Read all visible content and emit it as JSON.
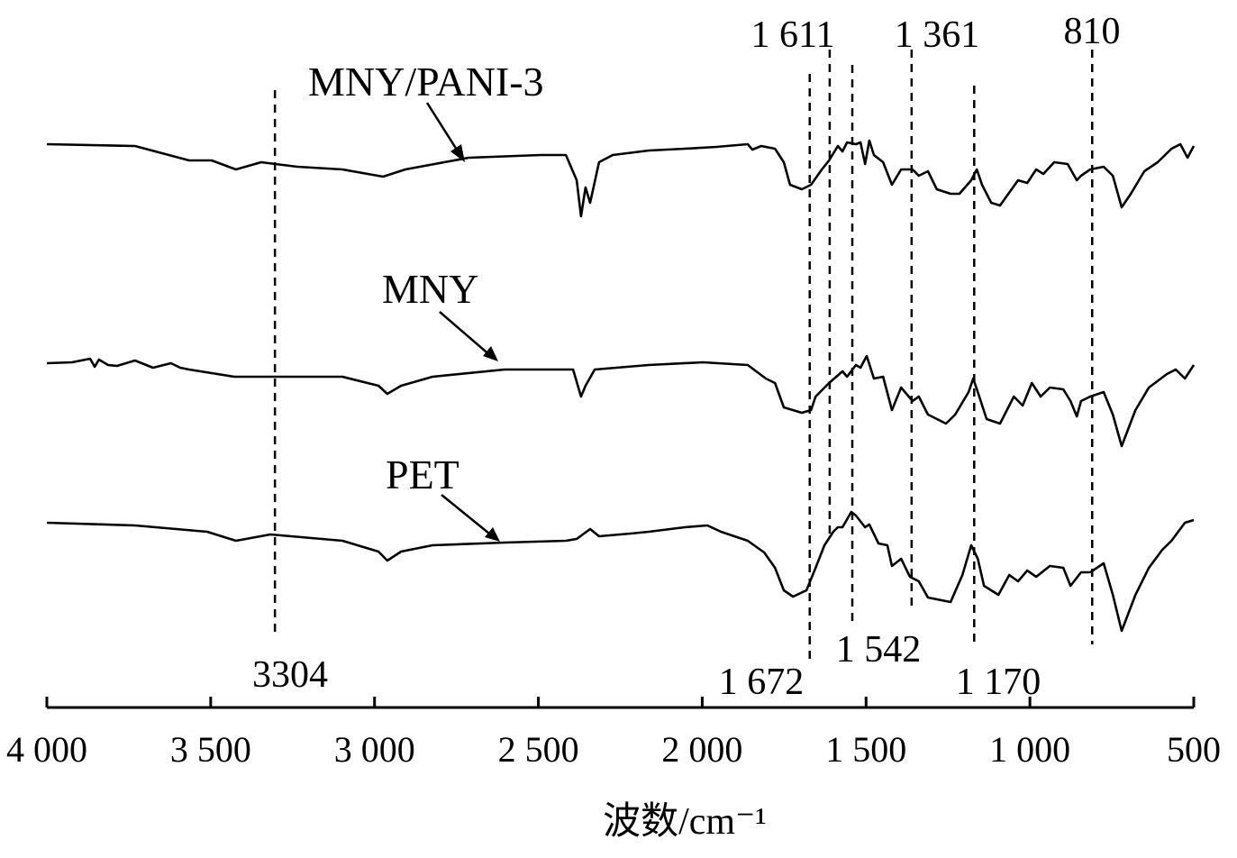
{
  "chart_data": {
    "type": "line",
    "title": "",
    "xlabel": "波数/cm⁻¹",
    "ylabel": "",
    "xlim": [
      4000,
      500
    ],
    "x_reversed": true,
    "y_unit": "transmittance (a.u., stacked)",
    "grid": false,
    "x_ticks": [
      4000,
      3500,
      3000,
      2500,
      2000,
      1500,
      1000,
      500
    ],
    "x_tick_labels": [
      "4 000",
      "3 500",
      "3 000",
      "2 500",
      "2 000",
      "1 500",
      "1 000",
      "500"
    ],
    "annotations": [
      {
        "wavenumber": 3304,
        "label": "3304",
        "side": "bottom"
      },
      {
        "wavenumber": 1672,
        "label": "1 672",
        "side": "bottom"
      },
      {
        "wavenumber": 1611,
        "label": "1 611",
        "side": "top"
      },
      {
        "wavenumber": 1542,
        "label": "1 542",
        "side": "bottom"
      },
      {
        "wavenumber": 1361,
        "label": "1 361",
        "side": "top"
      },
      {
        "wavenumber": 1170,
        "label": "1 170",
        "side": "bottom"
      },
      {
        "wavenumber": 810,
        "label": "810",
        "side": "top"
      }
    ],
    "series": [
      {
        "name": "MNY/PANI-3",
        "color": "#000000",
        "points": [
          [
            4000,
            640
          ],
          [
            3731,
            638
          ],
          [
            3566,
            622
          ],
          [
            3497,
            622
          ],
          [
            3423,
            612
          ],
          [
            3346,
            620
          ],
          [
            3236,
            615
          ],
          [
            3098,
            612
          ],
          [
            2974,
            604
          ],
          [
            2906,
            612
          ],
          [
            2713,
            625
          ],
          [
            2493,
            628
          ],
          [
            2416,
            628
          ],
          [
            2383,
            600
          ],
          [
            2370,
            560
          ],
          [
            2356,
            592
          ],
          [
            2342,
            575
          ],
          [
            2315,
            620
          ],
          [
            2273,
            628
          ],
          [
            2163,
            633
          ],
          [
            2053,
            635
          ],
          [
            1957,
            637
          ],
          [
            1861,
            640
          ],
          [
            1847,
            634
          ],
          [
            1820,
            638
          ],
          [
            1778,
            635
          ],
          [
            1751,
            620
          ],
          [
            1732,
            595
          ],
          [
            1696,
            590
          ],
          [
            1668,
            595
          ],
          [
            1635,
            612
          ],
          [
            1613,
            622
          ],
          [
            1586,
            638
          ],
          [
            1572,
            632
          ],
          [
            1558,
            642
          ],
          [
            1531,
            640
          ],
          [
            1517,
            642
          ],
          [
            1503,
            618
          ],
          [
            1490,
            644
          ],
          [
            1476,
            628
          ],
          [
            1448,
            620
          ],
          [
            1421,
            595
          ],
          [
            1393,
            612
          ],
          [
            1358,
            612
          ],
          [
            1339,
            605
          ],
          [
            1311,
            610
          ],
          [
            1284,
            590
          ],
          [
            1242,
            585
          ],
          [
            1215,
            585
          ],
          [
            1179,
            600
          ],
          [
            1162,
            612
          ],
          [
            1146,
            595
          ],
          [
            1118,
            575
          ],
          [
            1091,
            572
          ],
          [
            1036,
            600
          ],
          [
            1008,
            597
          ],
          [
            981,
            612
          ],
          [
            959,
            607
          ],
          [
            926,
            620
          ],
          [
            885,
            618
          ],
          [
            857,
            600
          ],
          [
            844,
            605
          ],
          [
            816,
            612
          ],
          [
            775,
            615
          ],
          [
            747,
            605
          ],
          [
            720,
            570
          ],
          [
            692,
            585
          ],
          [
            651,
            610
          ],
          [
            610,
            620
          ],
          [
            568,
            635
          ],
          [
            541,
            640
          ],
          [
            519,
            625
          ],
          [
            500,
            638
          ]
        ]
      },
      {
        "name": "MNY",
        "color": "#000000",
        "points": [
          [
            4000,
            397
          ],
          [
            3923,
            398
          ],
          [
            3868,
            402
          ],
          [
            3854,
            393
          ],
          [
            3841,
            401
          ],
          [
            3813,
            395
          ],
          [
            3786,
            394
          ],
          [
            3731,
            400
          ],
          [
            3676,
            392
          ],
          [
            3621,
            397
          ],
          [
            3593,
            392
          ],
          [
            3566,
            390
          ],
          [
            3428,
            382
          ],
          [
            3318,
            382
          ],
          [
            3098,
            382
          ],
          [
            2988,
            372
          ],
          [
            2961,
            363
          ],
          [
            2919,
            372
          ],
          [
            2823,
            382
          ],
          [
            2603,
            390
          ],
          [
            2394,
            390
          ],
          [
            2370,
            360
          ],
          [
            2356,
            372
          ],
          [
            2328,
            390
          ],
          [
            2163,
            395
          ],
          [
            1998,
            398
          ],
          [
            1861,
            395
          ],
          [
            1806,
            380
          ],
          [
            1778,
            375
          ],
          [
            1751,
            348
          ],
          [
            1696,
            342
          ],
          [
            1668,
            345
          ],
          [
            1654,
            360
          ],
          [
            1613,
            375
          ],
          [
            1572,
            388
          ],
          [
            1558,
            382
          ],
          [
            1531,
            395
          ],
          [
            1517,
            392
          ],
          [
            1498,
            405
          ],
          [
            1476,
            380
          ],
          [
            1448,
            382
          ],
          [
            1421,
            345
          ],
          [
            1393,
            370
          ],
          [
            1358,
            355
          ],
          [
            1339,
            360
          ],
          [
            1311,
            340
          ],
          [
            1256,
            330
          ],
          [
            1228,
            340
          ],
          [
            1187,
            365
          ],
          [
            1173,
            380
          ],
          [
            1159,
            365
          ],
          [
            1132,
            335
          ],
          [
            1091,
            330
          ],
          [
            1049,
            360
          ],
          [
            1022,
            350
          ],
          [
            994,
            375
          ],
          [
            967,
            360
          ],
          [
            939,
            370
          ],
          [
            898,
            368
          ],
          [
            876,
            355
          ],
          [
            857,
            338
          ],
          [
            844,
            355
          ],
          [
            816,
            360
          ],
          [
            775,
            365
          ],
          [
            747,
            340
          ],
          [
            720,
            305
          ],
          [
            678,
            345
          ],
          [
            637,
            370
          ],
          [
            582,
            385
          ],
          [
            555,
            390
          ],
          [
            527,
            380
          ],
          [
            500,
            395
          ]
        ]
      },
      {
        "name": "PET",
        "color": "#000000",
        "points": [
          [
            4000,
            220
          ],
          [
            3731,
            217
          ],
          [
            3511,
            210
          ],
          [
            3423,
            200
          ],
          [
            3318,
            207
          ],
          [
            3098,
            200
          ],
          [
            2988,
            188
          ],
          [
            2961,
            178
          ],
          [
            2919,
            188
          ],
          [
            2823,
            195
          ],
          [
            2603,
            198
          ],
          [
            2416,
            200
          ],
          [
            2383,
            202
          ],
          [
            2342,
            213
          ],
          [
            2315,
            205
          ],
          [
            2218,
            208
          ],
          [
            2163,
            210
          ],
          [
            2053,
            215
          ],
          [
            1984,
            217
          ],
          [
            1943,
            210
          ],
          [
            1861,
            200
          ],
          [
            1811,
            187
          ],
          [
            1778,
            170
          ],
          [
            1751,
            145
          ],
          [
            1723,
            138
          ],
          [
            1682,
            145
          ],
          [
            1654,
            170
          ],
          [
            1627,
            195
          ],
          [
            1600,
            210
          ],
          [
            1586,
            215
          ],
          [
            1572,
            215
          ],
          [
            1545,
            232
          ],
          [
            1531,
            228
          ],
          [
            1503,
            215
          ],
          [
            1490,
            218
          ],
          [
            1462,
            197
          ],
          [
            1435,
            195
          ],
          [
            1421,
            172
          ],
          [
            1393,
            180
          ],
          [
            1366,
            160
          ],
          [
            1339,
            155
          ],
          [
            1311,
            137
          ],
          [
            1242,
            132
          ],
          [
            1206,
            162
          ],
          [
            1179,
            195
          ],
          [
            1159,
            180
          ],
          [
            1140,
            150
          ],
          [
            1096,
            140
          ],
          [
            1063,
            162
          ],
          [
            1036,
            155
          ],
          [
            1008,
            167
          ],
          [
            981,
            160
          ],
          [
            939,
            172
          ],
          [
            898,
            170
          ],
          [
            876,
            150
          ],
          [
            844,
            165
          ],
          [
            816,
            165
          ],
          [
            775,
            175
          ],
          [
            747,
            140
          ],
          [
            720,
            100
          ],
          [
            678,
            140
          ],
          [
            637,
            170
          ],
          [
            596,
            190
          ],
          [
            568,
            200
          ],
          [
            527,
            220
          ],
          [
            500,
            223
          ]
        ]
      }
    ]
  }
}
